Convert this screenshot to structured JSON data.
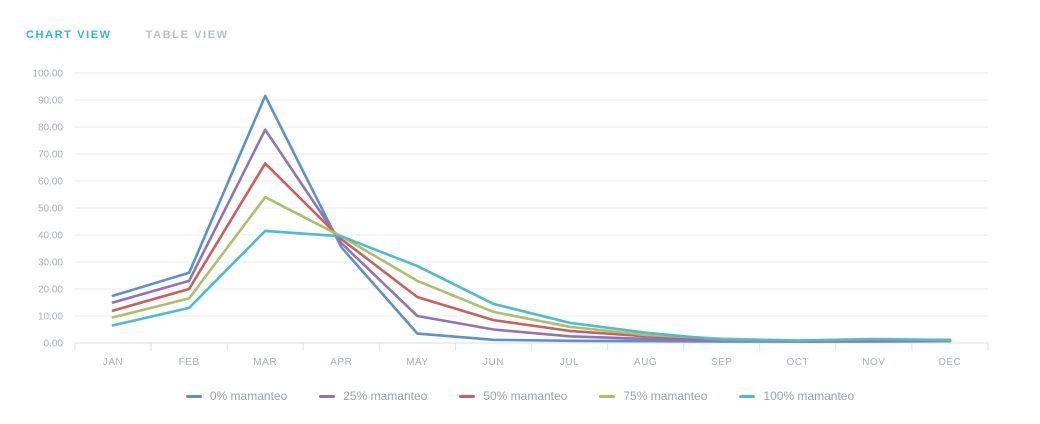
{
  "tabs": [
    {
      "label": "CHART VIEW",
      "active": true
    },
    {
      "label": "TABLE VIEW",
      "active": false
    }
  ],
  "colors": {
    "active_tab": "#2fb7c8",
    "inactive_tab": "#b8bec6",
    "grid": "#e8ebee",
    "axis_text": "#a8afb7",
    "legend_text": "#9aa1a9"
  },
  "chart_data": {
    "type": "line",
    "title": "",
    "xlabel": "",
    "ylabel": "",
    "categories": [
      "JAN",
      "FEB",
      "MAR",
      "APR",
      "MAY",
      "JUN",
      "JUL",
      "AUG",
      "SEP",
      "OCT",
      "NOV",
      "DEC"
    ],
    "ylim": [
      0,
      100
    ],
    "y_ticks": [
      "0.00",
      "10.00",
      "20.00",
      "30.00",
      "40.00",
      "50.00",
      "60.00",
      "70.00",
      "80.00",
      "90.00",
      "100.00"
    ],
    "grid": true,
    "legend_position": "bottom",
    "series": [
      {
        "name": "0% mamanteo",
        "color": "#5b93c8",
        "values": [
          17.5,
          26,
          91.5,
          35.5,
          3.5,
          1.2,
          0.8,
          0.7,
          0.6,
          0.5,
          0.6,
          0.7
        ]
      },
      {
        "name": "25% mamanteo",
        "color": "#8e74b9",
        "values": [
          15,
          23,
          79,
          37,
          10,
          5,
          2.5,
          1.5,
          0.8,
          0.6,
          0.8,
          0.8
        ]
      },
      {
        "name": "50% mamanteo",
        "color": "#cb5e5e",
        "values": [
          12,
          20,
          66.5,
          38.5,
          17,
          8.5,
          4.5,
          2.5,
          1.3,
          0.8,
          1.2,
          0.9
        ]
      },
      {
        "name": "75% mamanteo",
        "color": "#a9c26a",
        "values": [
          9.5,
          16.5,
          54,
          39.5,
          23,
          11.5,
          6,
          3,
          1.6,
          0.9,
          1.5,
          1.0
        ]
      },
      {
        "name": "100% mamanteo",
        "color": "#4cbdd0",
        "values": [
          6.5,
          13,
          41.5,
          39.5,
          28.5,
          14.5,
          7.5,
          3.8,
          1.2,
          0.9,
          1.3,
          1.2
        ]
      }
    ]
  }
}
